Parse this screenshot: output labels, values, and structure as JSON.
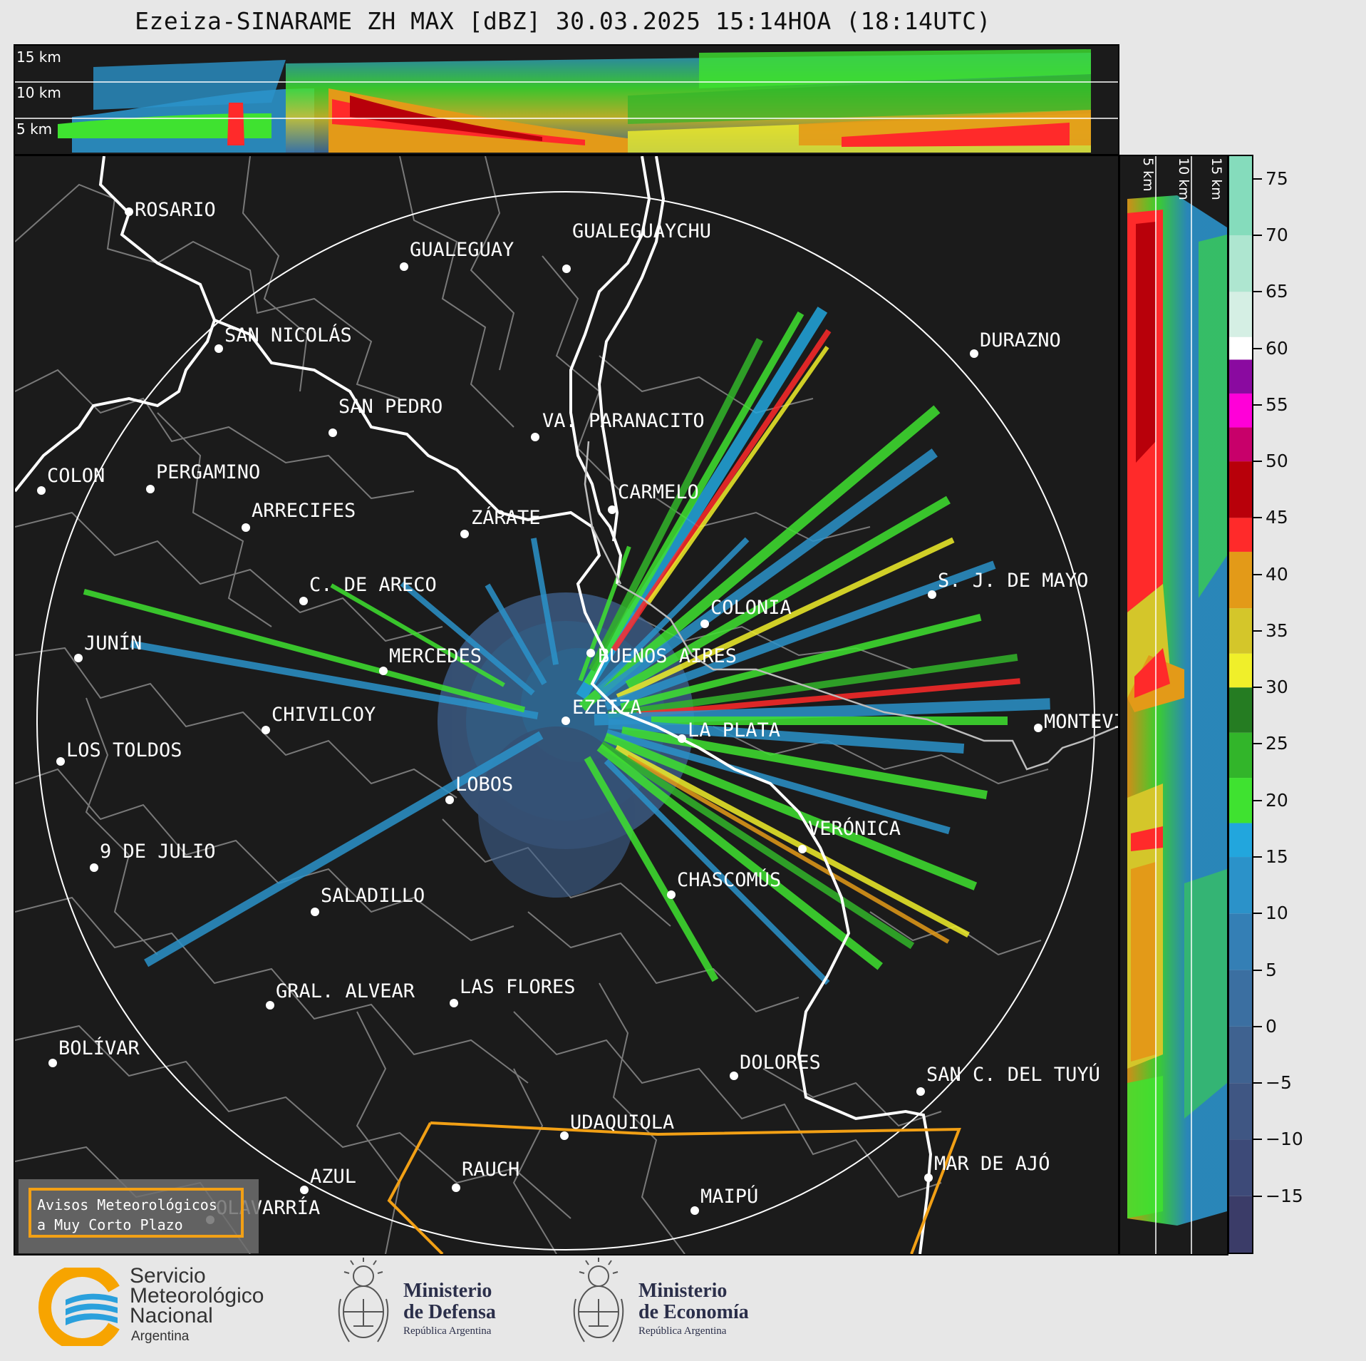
{
  "title": "Ezeiza-SINARAME ZH MAX [dBZ] 30.03.2025 15:14HOA (18:14UTC)",
  "top_panel": {
    "height_labels": [
      "15 km",
      "10 km",
      "5 km"
    ]
  },
  "side_panel": {
    "height_labels": [
      "5 km",
      "10 km",
      "15 km"
    ]
  },
  "map": {
    "cities": [
      {
        "name": "ROSARIO"
      },
      {
        "name": "GUALEGUAYCHU"
      },
      {
        "name": "GUALEGUAY"
      },
      {
        "name": "SAN NICOLÁS"
      },
      {
        "name": "DURAZNO"
      },
      {
        "name": "SAN PEDRO"
      },
      {
        "name": "VA. PARANACITO"
      },
      {
        "name": "COLON"
      },
      {
        "name": "PERGAMINO"
      },
      {
        "name": "CARMELO"
      },
      {
        "name": "ARRECIFES"
      },
      {
        "name": "ZÁRATE"
      },
      {
        "name": "S. J. DE MAYO"
      },
      {
        "name": "C. DE ARECO"
      },
      {
        "name": "COLONIA"
      },
      {
        "name": "JUNÍN"
      },
      {
        "name": "BUENOS AIRES"
      },
      {
        "name": "MERCEDES"
      },
      {
        "name": "EZEIZA"
      },
      {
        "name": "MONTEVIDEO"
      },
      {
        "name": "CHIVILCOY"
      },
      {
        "name": "LA PLATA"
      },
      {
        "name": "LOS TOLDOS"
      },
      {
        "name": "LOBOS"
      },
      {
        "name": "VERÓNICA"
      },
      {
        "name": "9 DE JULIO"
      },
      {
        "name": "CHASCOMÚS"
      },
      {
        "name": "SALADILLO"
      },
      {
        "name": "GRAL. ALVEAR"
      },
      {
        "name": "LAS FLORES"
      },
      {
        "name": "BOLÍVAR"
      },
      {
        "name": "DOLORES"
      },
      {
        "name": "SAN C. DEL TUYÚ"
      },
      {
        "name": "UDAQUIOLA"
      },
      {
        "name": "MAR DE AJÓ"
      },
      {
        "name": "AZUL"
      },
      {
        "name": "RAUCH"
      },
      {
        "name": "MAIPÚ"
      },
      {
        "name": "OLAVARRÍA"
      }
    ],
    "warning_box": {
      "line1": "Avisos Meteorológicos",
      "line2": "a Muy Corto Plazo"
    }
  },
  "colorbar": {
    "ticks": [
      "75",
      "70",
      "65",
      "60",
      "55",
      "50",
      "45",
      "40",
      "35",
      "30",
      "25",
      "20",
      "15",
      "10",
      "5",
      "0",
      "−5",
      "−10",
      "−15"
    ],
    "stops": [
      {
        "from": -20,
        "to": -15,
        "color": "#3b3c68"
      },
      {
        "from": -15,
        "to": -10,
        "color": "#3d4a78"
      },
      {
        "from": -10,
        "to": -5,
        "color": "#3f5683"
      },
      {
        "from": -5,
        "to": 0,
        "color": "#3f6290"
      },
      {
        "from": 0,
        "to": 5,
        "color": "#3b6fa1"
      },
      {
        "from": 5,
        "to": 10,
        "color": "#347fb5"
      },
      {
        "from": 10,
        "to": 15,
        "color": "#2b92c9"
      },
      {
        "from": 15,
        "to": 18,
        "color": "#22a6dd"
      },
      {
        "from": 18,
        "to": 22,
        "color": "#3fe230"
      },
      {
        "from": 22,
        "to": 26,
        "color": "#32b52a"
      },
      {
        "from": 26,
        "to": 30,
        "color": "#257c22"
      },
      {
        "from": 30,
        "to": 33,
        "color": "#f0ef2a"
      },
      {
        "from": 33,
        "to": 37,
        "color": "#d4c62a"
      },
      {
        "from": 37,
        "to": 42,
        "color": "#e39a18"
      },
      {
        "from": 42,
        "to": 45,
        "color": "#ff2a2a"
      },
      {
        "from": 45,
        "to": 50,
        "color": "#b8000a"
      },
      {
        "from": 50,
        "to": 53,
        "color": "#c8006a"
      },
      {
        "from": 53,
        "to": 56,
        "color": "#ff00d8"
      },
      {
        "from": 56,
        "to": 59,
        "color": "#8a0aa0"
      },
      {
        "from": 59,
        "to": 61,
        "color": "#ffffff"
      },
      {
        "from": 61,
        "to": 65,
        "color": "#d5efe4"
      },
      {
        "from": 65,
        "to": 70,
        "color": "#aee6d0"
      },
      {
        "from": 70,
        "to": 77,
        "color": "#85dcbc"
      }
    ]
  },
  "footer": {
    "smn": {
      "line1": "Servicio",
      "line2": "Meteorológico",
      "line3": "Nacional",
      "line4": "Argentina"
    },
    "defensa": {
      "line1": "Ministerio",
      "line2": "de Defensa",
      "line3": "República Argentina"
    },
    "economia": {
      "line1": "Ministerio",
      "line2": "de Economía",
      "line3": "República Argentina"
    }
  },
  "colors": {
    "background": "#1b1b1b",
    "boundary": "#8a8a8a",
    "river": "#ffffff",
    "alert_polygon": "#f2a015",
    "smn_orange": "#f7a400",
    "smn_blue": "#2aa0dc"
  }
}
